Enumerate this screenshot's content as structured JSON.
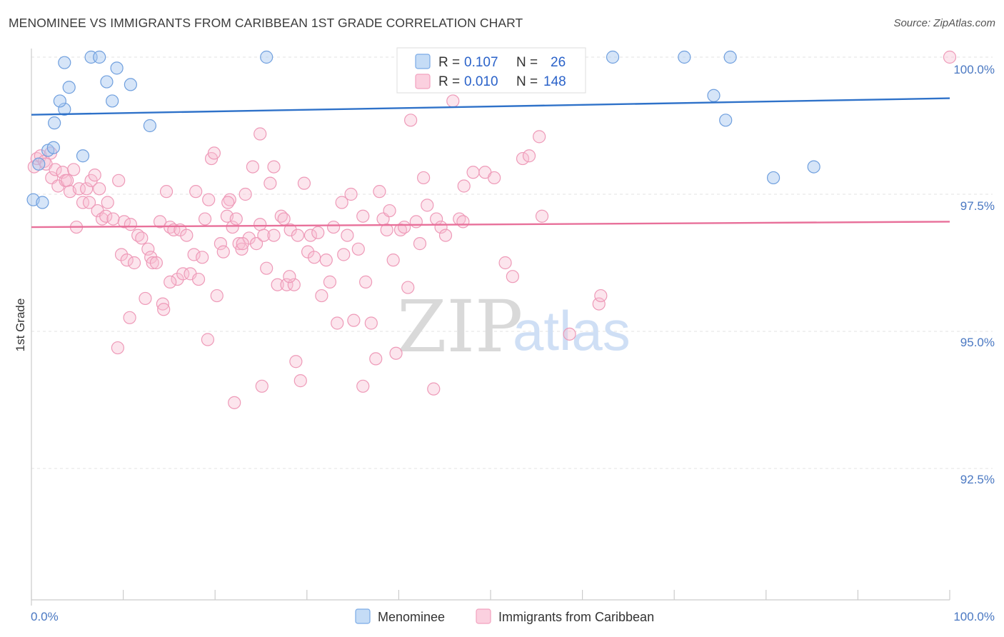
{
  "title": "MENOMINEE VS IMMIGRANTS FROM CARIBBEAN 1ST GRADE CORRELATION CHART",
  "source": "Source: ZipAtlas.com",
  "watermark": {
    "zip": "ZIP",
    "atlas": "atlas"
  },
  "legend_top": {
    "r_label": "R =",
    "n_label": "N =",
    "entries": [
      {
        "r": "0.107",
        "n": "26"
      },
      {
        "r": "0.010",
        "n": "148"
      }
    ]
  },
  "chart_data": {
    "type": "scatter",
    "title": "MENOMINEE VS IMMIGRANTS FROM CARIBBEAN 1ST GRADE CORRELATION CHART",
    "xlabel": "",
    "ylabel": "1st Grade",
    "xlim": [
      0,
      100
    ],
    "ylim": [
      90.0,
      100.7
    ],
    "x_tick_labels": [
      "0.0%",
      "100.0%"
    ],
    "y_ticks": [
      100.0,
      97.5,
      95.0,
      92.5
    ],
    "y_tick_labels": [
      "100.0%",
      "97.5%",
      "95.0%",
      "92.5%"
    ],
    "grid": true,
    "legend_position": "top-center",
    "colors": {
      "menominee": "#7aaae6",
      "caribbean": "#f2a2bf",
      "menominee_line": "#2f72c9",
      "caribbean_line": "#e8709a"
    },
    "series": [
      {
        "name": "Menominee",
        "r": 0.107,
        "n": 26,
        "trend": [
          [
            0,
            98.95
          ],
          [
            100,
            99.25
          ]
        ],
        "points": [
          [
            0.2,
            97.4
          ],
          [
            1.2,
            97.35
          ],
          [
            0.8,
            98.05
          ],
          [
            1.8,
            98.3
          ],
          [
            2.4,
            98.35
          ],
          [
            2.5,
            98.8
          ],
          [
            3.6,
            99.05
          ],
          [
            3.1,
            99.2
          ],
          [
            4.1,
            99.45
          ],
          [
            5.6,
            98.2
          ],
          [
            3.6,
            99.9
          ],
          [
            6.5,
            100.0
          ],
          [
            7.4,
            100.0
          ],
          [
            8.2,
            99.55
          ],
          [
            8.8,
            99.2
          ],
          [
            9.3,
            99.8
          ],
          [
            10.8,
            99.5
          ],
          [
            12.9,
            98.75
          ],
          [
            25.6,
            100.0
          ],
          [
            63.3,
            100.0
          ],
          [
            71.1,
            100.0
          ],
          [
            76.1,
            100.0
          ],
          [
            74.3,
            99.3
          ],
          [
            75.6,
            98.85
          ],
          [
            80.8,
            97.8
          ],
          [
            85.2,
            98.0
          ]
        ]
      },
      {
        "name": "Immigrants from Caribbean",
        "r": 0.01,
        "n": 148,
        "trend": [
          [
            0,
            96.9
          ],
          [
            100,
            97.0
          ]
        ],
        "points": [
          [
            0.3,
            98.0
          ],
          [
            0.6,
            98.15
          ],
          [
            1.0,
            98.2
          ],
          [
            1.4,
            98.1
          ],
          [
            1.6,
            98.05
          ],
          [
            2.1,
            98.25
          ],
          [
            2.2,
            97.8
          ],
          [
            2.6,
            97.95
          ],
          [
            2.9,
            97.65
          ],
          [
            3.4,
            97.9
          ],
          [
            3.7,
            97.75
          ],
          [
            3.9,
            97.75
          ],
          [
            4.2,
            97.55
          ],
          [
            4.6,
            97.95
          ],
          [
            4.9,
            96.9
          ],
          [
            5.2,
            97.6
          ],
          [
            5.6,
            97.35
          ],
          [
            6.0,
            97.6
          ],
          [
            6.3,
            97.35
          ],
          [
            6.5,
            97.75
          ],
          [
            6.9,
            97.85
          ],
          [
            7.2,
            97.2
          ],
          [
            7.4,
            97.6
          ],
          [
            7.7,
            97.05
          ],
          [
            8.1,
            97.1
          ],
          [
            8.3,
            97.35
          ],
          [
            8.9,
            97.05
          ],
          [
            9.5,
            97.75
          ],
          [
            9.8,
            96.4
          ],
          [
            10.1,
            97.0
          ],
          [
            10.4,
            96.3
          ],
          [
            10.8,
            96.95
          ],
          [
            11.2,
            96.25
          ],
          [
            11.6,
            96.75
          ],
          [
            12.0,
            96.7
          ],
          [
            12.4,
            95.6
          ],
          [
            12.7,
            96.5
          ],
          [
            13.0,
            96.35
          ],
          [
            13.2,
            96.25
          ],
          [
            13.6,
            96.25
          ],
          [
            14.0,
            97.0
          ],
          [
            14.3,
            95.5
          ],
          [
            14.7,
            97.55
          ],
          [
            15.1,
            96.9
          ],
          [
            15.5,
            96.85
          ],
          [
            15.9,
            95.95
          ],
          [
            16.2,
            96.85
          ],
          [
            16.5,
            96.05
          ],
          [
            16.9,
            96.75
          ],
          [
            17.3,
            96.05
          ],
          [
            17.7,
            96.4
          ],
          [
            17.9,
            97.55
          ],
          [
            18.2,
            95.95
          ],
          [
            18.6,
            96.35
          ],
          [
            18.9,
            97.05
          ],
          [
            19.3,
            97.4
          ],
          [
            19.6,
            98.15
          ],
          [
            19.9,
            98.25
          ],
          [
            20.2,
            95.65
          ],
          [
            20.6,
            96.6
          ],
          [
            20.9,
            96.45
          ],
          [
            21.3,
            97.1
          ],
          [
            21.6,
            97.4
          ],
          [
            21.9,
            96.9
          ],
          [
            22.3,
            97.05
          ],
          [
            22.6,
            96.6
          ],
          [
            22.9,
            96.5
          ],
          [
            23.3,
            97.5
          ],
          [
            23.7,
            96.7
          ],
          [
            24.1,
            98.0
          ],
          [
            24.5,
            96.6
          ],
          [
            24.9,
            96.95
          ],
          [
            25.3,
            96.75
          ],
          [
            25.6,
            96.15
          ],
          [
            26.0,
            97.7
          ],
          [
            26.4,
            98.0
          ],
          [
            26.8,
            95.85
          ],
          [
            27.2,
            97.1
          ],
          [
            27.5,
            97.05
          ],
          [
            27.8,
            95.85
          ],
          [
            28.2,
            96.85
          ],
          [
            28.6,
            95.85
          ],
          [
            29.0,
            96.75
          ],
          [
            29.3,
            94.1
          ],
          [
            29.7,
            97.7
          ],
          [
            30.1,
            96.45
          ],
          [
            30.4,
            96.75
          ],
          [
            30.8,
            96.35
          ],
          [
            31.2,
            96.8
          ],
          [
            31.6,
            95.65
          ],
          [
            32.1,
            96.3
          ],
          [
            32.5,
            95.9
          ],
          [
            32.9,
            96.9
          ],
          [
            33.3,
            95.15
          ],
          [
            33.8,
            97.35
          ],
          [
            34.4,
            96.75
          ],
          [
            34.8,
            97.5
          ],
          [
            35.1,
            95.2
          ],
          [
            35.6,
            96.5
          ],
          [
            36.1,
            97.1
          ],
          [
            36.4,
            95.9
          ],
          [
            37.0,
            95.15
          ],
          [
            37.5,
            94.5
          ],
          [
            37.9,
            97.55
          ],
          [
            38.3,
            97.05
          ],
          [
            38.7,
            96.85
          ],
          [
            39.0,
            97.2
          ],
          [
            39.7,
            94.6
          ],
          [
            40.2,
            96.85
          ],
          [
            40.6,
            96.9
          ],
          [
            41.0,
            95.8
          ],
          [
            41.3,
            98.85
          ],
          [
            41.9,
            97.0
          ],
          [
            42.3,
            96.6
          ],
          [
            42.7,
            97.8
          ],
          [
            43.1,
            97.3
          ],
          [
            44.1,
            97.05
          ],
          [
            44.6,
            96.9
          ],
          [
            45.1,
            96.75
          ],
          [
            45.9,
            99.2
          ],
          [
            46.6,
            97.05
          ],
          [
            47.1,
            97.65
          ],
          [
            48.1,
            97.9
          ],
          [
            49.4,
            97.9
          ],
          [
            50.4,
            97.8
          ],
          [
            51.6,
            96.25
          ],
          [
            52.4,
            96.0
          ],
          [
            53.5,
            98.15
          ],
          [
            54.2,
            98.2
          ],
          [
            55.3,
            98.55
          ],
          [
            55.6,
            97.1
          ],
          [
            58.6,
            94.95
          ],
          [
            61.8,
            95.5
          ],
          [
            62.0,
            95.65
          ],
          [
            100.0,
            100.0
          ],
          [
            43.8,
            93.95
          ],
          [
            36.1,
            94.0
          ],
          [
            28.8,
            94.45
          ],
          [
            25.1,
            94.0
          ],
          [
            22.1,
            93.7
          ],
          [
            19.2,
            94.85
          ],
          [
            9.4,
            94.7
          ],
          [
            10.7,
            95.25
          ],
          [
            14.4,
            95.4
          ],
          [
            15.1,
            95.9
          ],
          [
            21.4,
            97.35
          ],
          [
            23.0,
            96.6
          ],
          [
            24.9,
            98.6
          ],
          [
            26.4,
            96.75
          ],
          [
            28.1,
            96.0
          ],
          [
            34.0,
            96.4
          ],
          [
            39.4,
            96.3
          ],
          [
            47.0,
            97.0
          ]
        ]
      }
    ]
  },
  "bottom_legend": [
    "Menominee",
    "Immigrants from Caribbean"
  ]
}
